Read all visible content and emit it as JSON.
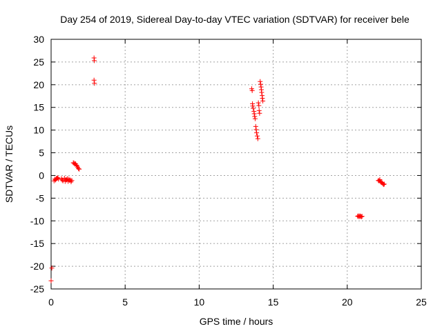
{
  "chart_data": {
    "type": "scatter",
    "title": "Day 254 of 2019, Sidereal Day-to-day VTEC variation (SDTVAR) for receiver bele",
    "xlabel": "GPS time / hours",
    "ylabel": "SDTVAR / TECUs",
    "xlim": [
      0,
      25
    ],
    "ylim": [
      -25,
      30
    ],
    "x_ticks": [
      0,
      5,
      10,
      15,
      20,
      25
    ],
    "x_tick_labels": [
      "0",
      "5",
      "10",
      "15",
      "20",
      "25"
    ],
    "y_ticks": [
      -25,
      -20,
      -15,
      -10,
      -5,
      0,
      5,
      10,
      15,
      20,
      25,
      30
    ],
    "y_tick_labels": [
      "-25",
      "-20",
      "-15",
      "-10",
      "-5",
      "0",
      "5",
      "10",
      "15",
      "20",
      "25",
      "30"
    ],
    "grid": true,
    "marker": "+",
    "marker_color": "#ff0000",
    "series": [
      {
        "name": "SDTVAR",
        "points": [
          [
            0.0,
            -23.2
          ],
          [
            0.05,
            -20.4
          ],
          [
            0.2,
            -1.2
          ],
          [
            0.25,
            -0.8
          ],
          [
            0.3,
            -1.0
          ],
          [
            0.35,
            -0.7
          ],
          [
            0.4,
            -0.6
          ],
          [
            0.45,
            -0.5
          ],
          [
            0.5,
            -0.8
          ],
          [
            0.7,
            -0.7
          ],
          [
            0.75,
            -1.0
          ],
          [
            0.8,
            -1.2
          ],
          [
            0.9,
            -0.6
          ],
          [
            0.95,
            -1.3
          ],
          [
            1.0,
            -0.9
          ],
          [
            1.05,
            -1.0
          ],
          [
            1.1,
            -0.7
          ],
          [
            1.15,
            -1.3
          ],
          [
            1.2,
            -0.8
          ],
          [
            1.25,
            -1.1
          ],
          [
            1.3,
            -1.0
          ],
          [
            1.35,
            -1.4
          ],
          [
            1.4,
            -1.1
          ],
          [
            1.5,
            2.8
          ],
          [
            1.55,
            2.7
          ],
          [
            1.6,
            2.5
          ],
          [
            1.65,
            2.6
          ],
          [
            1.7,
            2.3
          ],
          [
            1.75,
            2.1
          ],
          [
            1.8,
            1.8
          ],
          [
            1.85,
            1.5
          ],
          [
            1.9,
            1.4
          ],
          [
            2.9,
            25.9
          ],
          [
            2.92,
            25.3
          ],
          [
            2.9,
            21.0
          ],
          [
            2.93,
            20.3
          ],
          [
            13.55,
            19.1
          ],
          [
            13.58,
            18.7
          ],
          [
            13.6,
            15.8
          ],
          [
            13.62,
            15.3
          ],
          [
            13.65,
            14.8
          ],
          [
            13.7,
            14.1
          ],
          [
            13.72,
            13.6
          ],
          [
            13.75,
            13.0
          ],
          [
            13.78,
            12.5
          ],
          [
            13.82,
            10.8
          ],
          [
            13.85,
            10.1
          ],
          [
            13.88,
            9.4
          ],
          [
            13.92,
            8.7
          ],
          [
            13.96,
            8.1
          ],
          [
            14.0,
            16.0
          ],
          [
            14.03,
            15.4
          ],
          [
            14.05,
            14.3
          ],
          [
            14.08,
            13.7
          ],
          [
            14.12,
            20.7
          ],
          [
            14.15,
            20.1
          ],
          [
            14.18,
            19.5
          ],
          [
            14.2,
            18.9
          ],
          [
            14.22,
            18.3
          ],
          [
            14.25,
            17.6
          ],
          [
            14.27,
            17.0
          ],
          [
            14.3,
            16.4
          ],
          [
            20.7,
            -9.0
          ],
          [
            20.75,
            -8.9
          ],
          [
            20.8,
            -9.1
          ],
          [
            20.85,
            -8.9
          ],
          [
            20.9,
            -9.0
          ],
          [
            20.95,
            -9.1
          ],
          [
            21.0,
            -9.0
          ],
          [
            22.1,
            -1.1
          ],
          [
            22.15,
            -1.2
          ],
          [
            22.2,
            -0.9
          ],
          [
            22.25,
            -1.4
          ],
          [
            22.3,
            -1.5
          ],
          [
            22.35,
            -1.6
          ],
          [
            22.4,
            -1.8
          ],
          [
            22.45,
            -2.0
          ],
          [
            22.5,
            -1.9
          ]
        ]
      }
    ]
  }
}
